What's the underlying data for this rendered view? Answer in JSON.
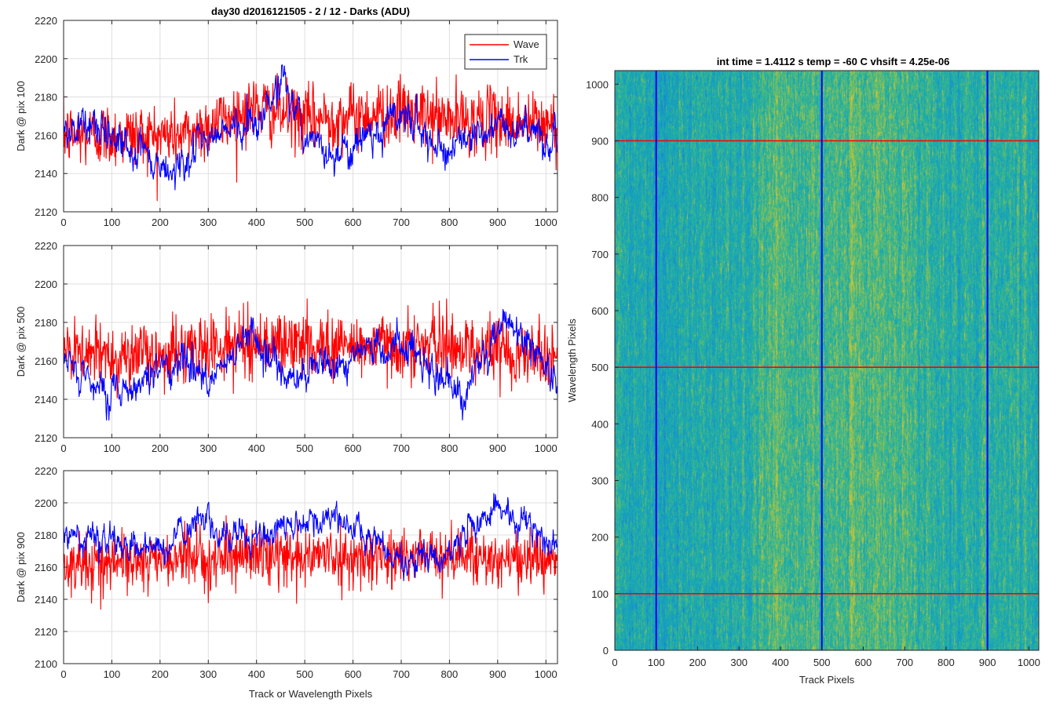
{
  "figure_title": "day30 d2016121505 - 2 / 12 - Darks (ADU)",
  "colors": {
    "wave": "#ff0000",
    "trk": "#0000ff",
    "axes": "#262626",
    "grid": "#dfdfdf"
  },
  "chart_data": [
    {
      "type": "line",
      "title": "day30 d2016121505 - 2 / 12 - Darks (ADU)",
      "xlabel": "",
      "ylabel": "Dark @ pix 100",
      "xlim": [
        0,
        1024
      ],
      "ylim": [
        2120,
        2220
      ],
      "xticks": [
        "0",
        "100",
        "200",
        "300",
        "400",
        "500",
        "600",
        "700",
        "800",
        "900",
        "1000"
      ],
      "yticks": [
        "2120",
        "2140",
        "2160",
        "2180",
        "2200",
        "2220"
      ],
      "grid": true,
      "legend": {
        "placement": "top-right",
        "entries": [
          "Wave",
          "Trk"
        ]
      },
      "series": [
        {
          "name": "Wave",
          "color": "#ff0000",
          "n_points": 1024,
          "approx_mean_profile": [
            [
              0,
              2160
            ],
            [
              150,
              2160
            ],
            [
              250,
              2160
            ],
            [
              400,
              2175
            ],
            [
              500,
              2168
            ],
            [
              600,
              2170
            ],
            [
              700,
              2172
            ],
            [
              800,
              2168
            ],
            [
              900,
              2168
            ],
            [
              1024,
              2165
            ]
          ],
          "approx_range": [
            2125,
            2202
          ]
        },
        {
          "name": "Trk",
          "color": "#0000ff",
          "n_points": 1024,
          "approx_mean_profile": [
            [
              0,
              2165
            ],
            [
              100,
              2162
            ],
            [
              180,
              2145
            ],
            [
              220,
              2140
            ],
            [
              300,
              2158
            ],
            [
              400,
              2168
            ],
            [
              460,
              2190
            ],
            [
              500,
              2160
            ],
            [
              560,
              2150
            ],
            [
              700,
              2172
            ],
            [
              800,
              2152
            ],
            [
              900,
              2165
            ],
            [
              1024,
              2158
            ]
          ],
          "approx_range": [
            2126,
            2200
          ]
        }
      ]
    },
    {
      "type": "line",
      "title": "",
      "xlabel": "",
      "ylabel": "Dark @ pix 500",
      "xlim": [
        0,
        1024
      ],
      "ylim": [
        2120,
        2220
      ],
      "xticks": [
        "0",
        "100",
        "200",
        "300",
        "400",
        "500",
        "600",
        "700",
        "800",
        "900",
        "1000"
      ],
      "yticks": [
        "2120",
        "2140",
        "2160",
        "2180",
        "2200",
        "2220"
      ],
      "grid": true,
      "series": [
        {
          "name": "Wave",
          "color": "#ff0000",
          "n_points": 1024,
          "approx_mean_profile": [
            [
              0,
              2163
            ],
            [
              200,
              2163
            ],
            [
              400,
              2170
            ],
            [
              500,
              2168
            ],
            [
              600,
              2168
            ],
            [
              800,
              2168
            ],
            [
              1024,
              2163
            ]
          ],
          "approx_range": [
            2120,
            2205
          ]
        },
        {
          "name": "Trk",
          "color": "#0000ff",
          "n_points": 1024,
          "approx_mean_profile": [
            [
              0,
              2160
            ],
            [
              60,
              2145
            ],
            [
              150,
              2148
            ],
            [
              250,
              2162
            ],
            [
              300,
              2145
            ],
            [
              390,
              2178
            ],
            [
              450,
              2150
            ],
            [
              600,
              2162
            ],
            [
              650,
              2165
            ],
            [
              700,
              2170
            ],
            [
              820,
              2140
            ],
            [
              920,
              2182
            ],
            [
              1024,
              2150
            ]
          ],
          "approx_range": [
            2129,
            2191
          ]
        }
      ]
    },
    {
      "type": "line",
      "title": "",
      "xlabel": "Track or Wavelength Pixels",
      "ylabel": "Dark @ pix 900",
      "xlim": [
        0,
        1024
      ],
      "ylim": [
        2100,
        2220
      ],
      "xticks": [
        "0",
        "100",
        "200",
        "300",
        "400",
        "500",
        "600",
        "700",
        "800",
        "900",
        "1000"
      ],
      "yticks": [
        "2100",
        "2120",
        "2140",
        "2160",
        "2180",
        "2200",
        "2220"
      ],
      "grid": true,
      "series": [
        {
          "name": "Wave",
          "color": "#ff0000",
          "n_points": 1024,
          "approx_mean_profile": [
            [
              0,
              2162
            ],
            [
              200,
              2164
            ],
            [
              400,
              2168
            ],
            [
              600,
              2166
            ],
            [
              800,
              2168
            ],
            [
              1024,
              2163
            ]
          ],
          "approx_range": [
            2120,
            2194
          ]
        },
        {
          "name": "Trk",
          "color": "#0000ff",
          "n_points": 1024,
          "approx_mean_profile": [
            [
              0,
              2182
            ],
            [
              80,
              2178
            ],
            [
              150,
              2172
            ],
            [
              220,
              2175
            ],
            [
              280,
              2190
            ],
            [
              350,
              2175
            ],
            [
              450,
              2185
            ],
            [
              560,
              2192
            ],
            [
              650,
              2175
            ],
            [
              700,
              2162
            ],
            [
              800,
              2172
            ],
            [
              900,
              2198
            ],
            [
              1000,
              2175
            ],
            [
              1024,
              2172
            ]
          ],
          "approx_range": [
            2145,
            2206
          ]
        }
      ]
    },
    {
      "type": "heatmap",
      "title": "int time = 1.4112 s    temp = -60 C    vhsift = 4.25e-06",
      "xlabel": "Track Pixels",
      "ylabel": "Wavelength Pixels",
      "xlim": [
        0,
        1024
      ],
      "ylim": [
        0,
        1024
      ],
      "xticks": [
        "0",
        "100",
        "200",
        "300",
        "400",
        "500",
        "600",
        "700",
        "800",
        "900",
        "1000"
      ],
      "yticks": [
        "0",
        "100",
        "200",
        "300",
        "400",
        "500",
        "600",
        "700",
        "800",
        "900",
        "1000"
      ],
      "colormap": "parula (teal-green noise, brighter yellow-green band around x 400-700)",
      "hlines": {
        "color": "#ff0000",
        "y": [
          100,
          500,
          900
        ]
      },
      "vlines": {
        "color": "#0000ff",
        "x": [
          100,
          500,
          900
        ]
      }
    }
  ]
}
